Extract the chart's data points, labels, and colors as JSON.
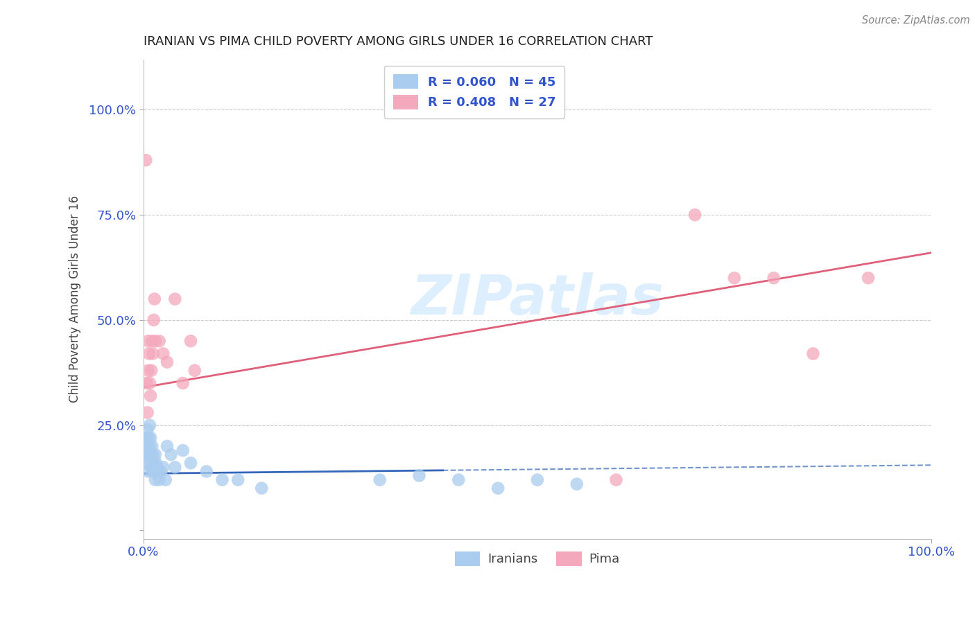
{
  "title": "IRANIAN VS PIMA CHILD POVERTY AMONG GIRLS UNDER 16 CORRELATION CHART",
  "source": "Source: ZipAtlas.com",
  "ylabel_label": "Child Poverty Among Girls Under 16",
  "iranians_color": "#aaccee",
  "pima_color": "#f4a8bc",
  "iranians_line_color": "#3366bb",
  "pima_line_color": "#e0607a",
  "legend_iranians_color": "#aaccee",
  "legend_pima_color": "#f4a8bc",
  "background_color": "#ffffff",
  "grid_color": "#cccccc",
  "title_color": "#222222",
  "axis_tick_color": "#3355cc",
  "axis_label_color": "#444444",
  "watermark_color": "#ddeeff",
  "iranians_x": [
    0.002,
    0.003,
    0.004,
    0.004,
    0.005,
    0.005,
    0.006,
    0.006,
    0.007,
    0.007,
    0.008,
    0.008,
    0.009,
    0.009,
    0.01,
    0.01,
    0.011,
    0.012,
    0.012,
    0.013,
    0.014,
    0.015,
    0.015,
    0.016,
    0.017,
    0.018,
    0.02,
    0.022,
    0.025,
    0.028,
    0.03,
    0.035,
    0.04,
    0.05,
    0.06,
    0.08,
    0.1,
    0.12,
    0.15,
    0.3,
    0.35,
    0.4,
    0.45,
    0.5,
    0.55
  ],
  "iranians_y": [
    0.18,
    0.2,
    0.22,
    0.16,
    0.24,
    0.2,
    0.18,
    0.14,
    0.22,
    0.18,
    0.2,
    0.25,
    0.16,
    0.22,
    0.18,
    0.15,
    0.2,
    0.14,
    0.18,
    0.16,
    0.14,
    0.18,
    0.12,
    0.16,
    0.14,
    0.15,
    0.12,
    0.14,
    0.15,
    0.12,
    0.2,
    0.18,
    0.15,
    0.19,
    0.16,
    0.14,
    0.12,
    0.12,
    0.1,
    0.12,
    0.13,
    0.12,
    0.1,
    0.12,
    0.11
  ],
  "pima_x": [
    0.003,
    0.004,
    0.005,
    0.006,
    0.006,
    0.007,
    0.008,
    0.009,
    0.01,
    0.011,
    0.012,
    0.013,
    0.014,
    0.015,
    0.02,
    0.025,
    0.03,
    0.04,
    0.05,
    0.06,
    0.065,
    0.6,
    0.7,
    0.75,
    0.8,
    0.85,
    0.92
  ],
  "pima_y": [
    0.88,
    0.35,
    0.28,
    0.45,
    0.38,
    0.42,
    0.35,
    0.32,
    0.38,
    0.45,
    0.42,
    0.5,
    0.55,
    0.45,
    0.45,
    0.42,
    0.4,
    0.55,
    0.35,
    0.45,
    0.38,
    0.12,
    0.75,
    0.6,
    0.6,
    0.42,
    0.6
  ],
  "iranians_line_x0": 0.0,
  "iranians_line_x1": 1.0,
  "iranians_line_y0": 0.135,
  "iranians_line_y1": 0.155,
  "iranians_line_solid_end": 0.38,
  "pima_line_x0": 0.0,
  "pima_line_x1": 1.0,
  "pima_line_y0": 0.34,
  "pima_line_y1": 0.66,
  "xmin": 0.0,
  "xmax": 1.0,
  "ymin": -0.02,
  "ymax": 1.12,
  "yticks": [
    0.0,
    0.25,
    0.5,
    0.75,
    1.0
  ],
  "ytick_labels": [
    "",
    "25.0%",
    "50.0%",
    "75.0%",
    "100.0%"
  ],
  "xtick_labels": [
    "0.0%",
    "100.0%"
  ]
}
